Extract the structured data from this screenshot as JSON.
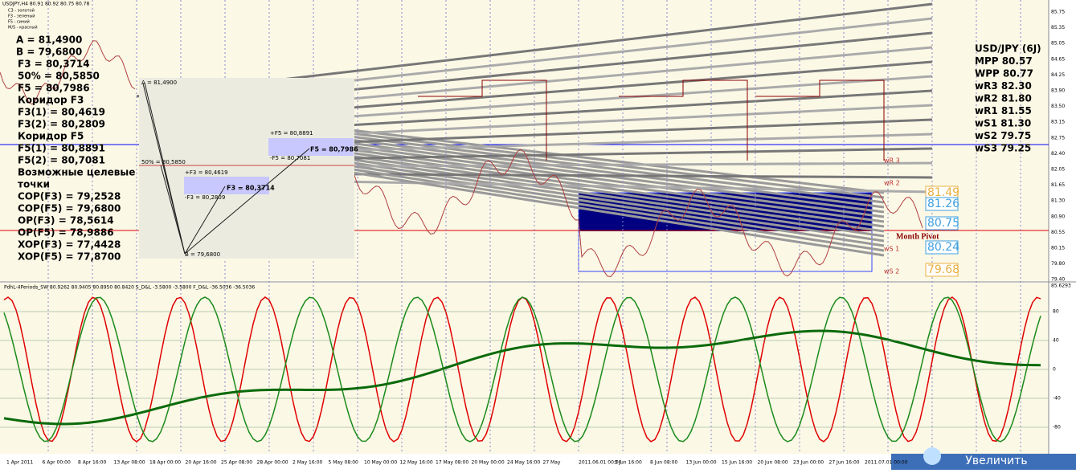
{
  "header": "USDJPY,H4 80.91 80.92 80.75 80.78",
  "legend": [
    "C3 - золотой",
    "F3 - зеленый",
    "F5 - синий",
    "M/S - красный"
  ],
  "left_panel": [
    "A = 81,4900",
    "B = 79,6800",
    "F3 = 80,3714",
    "50% = 80,5850",
    "F5 = 80,7986",
    "Коридор F3",
    "F3(1) = 80,4619",
    "F3(2) = 80,2809",
    "Коридор F5",
    "F5(1) = 80,8891",
    "F5(2) = 80,7081",
    "Возможные целевые",
    "точки",
    "COP(F3) = 79,2528",
    "COP(F5) = 79,6800",
    "OP(F3) = 78,5614",
    "OP(F5) = 78,9886",
    "XOP(F3) = 77,4428",
    "XOP(F5) = 77,8700"
  ],
  "fib_box": {
    "a": "A = 81,4900",
    "half": "50% = 80,5850",
    "f5_plus": "+F5 = 80,8891",
    "f5": "F5 = 80,7986",
    "f5_minus": "-F5 = 80,7081",
    "f3_plus": "+F3 = 80,4619",
    "f3": "F3 = 80,3714",
    "f3_minus": "-F3 = 80,2809",
    "b": "B = 79,6800"
  },
  "right_panel": [
    "USD/JPY (6J)",
    "MPP 80.57",
    "WPP 80.77",
    "wR3 82.30",
    "wR2 81.80",
    "wR1 81.55",
    "wS1 81.30",
    "wS2 79.75",
    "wS3 79.25"
  ],
  "pivot_labels": [
    "wR 3",
    "wR 2",
    "Month Pivot",
    "wS 1",
    "wS 2"
  ],
  "level_boxes": [
    "81.49",
    "81.26",
    "80.75",
    "80.24",
    "79.68"
  ],
  "price_axis": [
    "85.75",
    "85.35",
    "85.05",
    "84.65",
    "84.25",
    "83.90",
    "83.50",
    "83.15",
    "82.75",
    "82.40",
    "82.05",
    "81.65",
    "81.30",
    "80.90",
    "80.55",
    "80.15",
    "79.80",
    "79.40"
  ],
  "indicator_header": "PdhL-4Periods_SW 80.9262 80.9405 80.8950 80.8420 S_D&L -3.5800 -3.5800 F_D&L -36.5036 -36.5036",
  "indicator_axis": [
    "85.6293",
    "80",
    "40",
    "0",
    "-40",
    "-80"
  ],
  "date_axis": [
    "1 Apr 2011",
    "6 Apr 00:00",
    "8 Apr 16:00",
    "13 Apr 08:00",
    "18 Apr 00:00",
    "20 Apr 16:00",
    "25 Apr 08:00",
    "28 Apr 00:00",
    "2 May 16:00",
    "5 May 08:00",
    "10 May 00:00",
    "12 May 16:00",
    "17 May 08:00",
    "20 May 00:00",
    "24 May 16:00",
    "27 May",
    "2011.06.01 00:00",
    "3 Jun 16:00",
    "8 Jun 08:00",
    "13 Jun 00:00",
    "15 Jun 16:00",
    "20 Jun 08:00",
    "23 Jun 00:00",
    "27 Jun 16:00",
    "2011.07.01 00:00"
  ],
  "button": "Увеличить"
}
